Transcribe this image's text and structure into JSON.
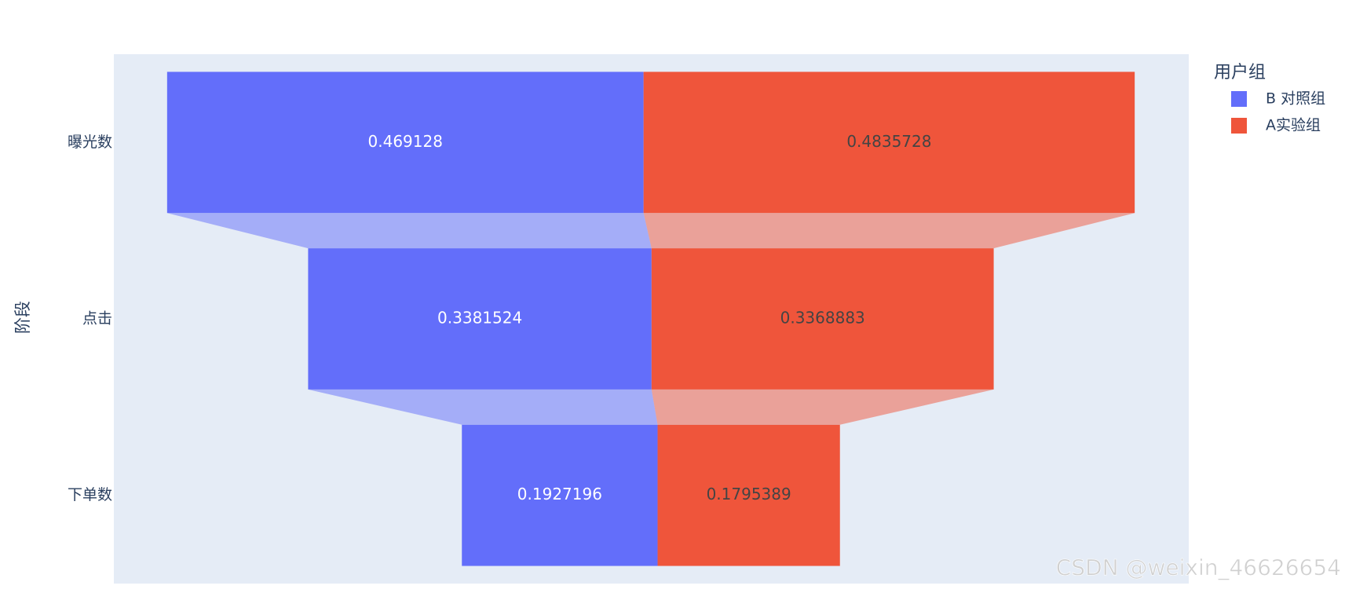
{
  "chart_data": {
    "type": "funnel",
    "y_axis_label": "阶段",
    "legend_title": "用户组",
    "categories": [
      "曝光数",
      "点击",
      "下单数"
    ],
    "series": [
      {
        "name": "B 对照组",
        "color": "#636efa",
        "values": [
          0.469128,
          0.3381524,
          0.1927196
        ]
      },
      {
        "name": "A实验组",
        "color": "#ef553b",
        "values": [
          0.4835728,
          0.3368883,
          0.1795389
        ]
      }
    ],
    "watermark": "CSDN @weixin_46626654"
  }
}
